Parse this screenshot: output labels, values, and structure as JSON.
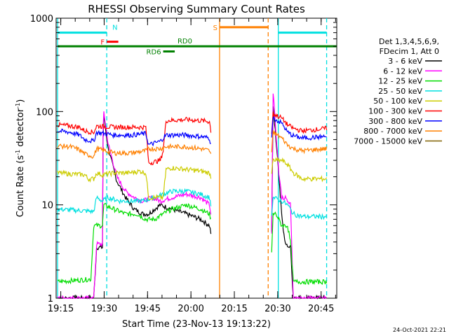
{
  "chart_data": {
    "type": "line",
    "title": "RHESSI Observing Summary Count Rates",
    "xlabel": "Start Time (23-Nov-13 19:13:22)",
    "ylabel_main": "Count Rate (s",
    "ylabel_sup1": "-1",
    "ylabel_mid": " detector",
    "ylabel_sup2": "-1",
    "ylabel_end": ")",
    "y_log": true,
    "ylim": [
      1,
      1000
    ],
    "xlim_minutes": [
      0,
      97
    ],
    "x_tick_labels": [
      "19:15",
      "19:30",
      "19:45",
      "20:00",
      "20:15",
      "20:30",
      "20:45"
    ],
    "x_tick_minutes": [
      1.6,
      16.6,
      31.6,
      46.6,
      61.6,
      76.6,
      91.6
    ],
    "y_tick_labels": [
      "1",
      "10",
      "100",
      "1000"
    ],
    "y_tick_values": [
      1,
      10,
      100,
      1000
    ],
    "legend_header": [
      "Det 1,3,4,5,6,9,",
      "FDecim 1, Att 0"
    ],
    "legend_placement": "right",
    "series": [
      {
        "name": "3 - 6 keV",
        "color": "#000000"
      },
      {
        "name": "6 - 12 keV",
        "color": "#ff00ff"
      },
      {
        "name": "12 - 25 keV",
        "color": "#00dd00"
      },
      {
        "name": "25 - 50 keV",
        "color": "#00e0e0"
      },
      {
        "name": "50 - 100 keV",
        "color": "#cccc00"
      },
      {
        "name": "100 - 300 keV",
        "color": "#ff0000"
      },
      {
        "name": "300 - 800 keV",
        "color": "#0000ff"
      },
      {
        "name": "800 - 7000 keV",
        "color": "#ff8000"
      },
      {
        "name": "7000 - 15000 keV",
        "color": "#806000"
      }
    ],
    "segments": [
      {
        "start": 0.5,
        "end": 53.5,
        "levels": {
          "3 - 6 keV": [
            [
              0.5,
              1
            ],
            [
              13,
              1
            ],
            [
              14,
              3.5
            ],
            [
              16,
              3.5
            ],
            [
              16.3,
              100
            ],
            [
              18,
              40
            ],
            [
              21,
              18
            ],
            [
              24,
              12
            ],
            [
              27,
              9
            ],
            [
              30,
              8
            ],
            [
              32,
              8
            ],
            [
              34,
              9
            ],
            [
              36,
              10
            ],
            [
              40,
              9
            ],
            [
              45,
              8
            ],
            [
              50,
              7
            ],
            [
              53,
              6
            ],
            [
              53.5,
              5
            ]
          ],
          "6 - 12 keV": [
            [
              0.5,
              1
            ],
            [
              13,
              1
            ],
            [
              14,
              3.8
            ],
            [
              16,
              3.8
            ],
            [
              16.3,
              110
            ],
            [
              18,
              45
            ],
            [
              21,
              20
            ],
            [
              24,
              14
            ],
            [
              27,
              12
            ],
            [
              30,
              11
            ],
            [
              33,
              12
            ],
            [
              36,
              11
            ],
            [
              40,
              12
            ],
            [
              45,
              13
            ],
            [
              50,
              12
            ],
            [
              53,
              10
            ],
            [
              53.5,
              8
            ]
          ],
          "12 - 25 keV": [
            [
              0.5,
              1.5
            ],
            [
              12,
              1.6
            ],
            [
              13,
              6
            ],
            [
              16,
              6
            ],
            [
              16.5,
              10
            ],
            [
              20,
              9
            ],
            [
              24,
              8
            ],
            [
              28,
              8
            ],
            [
              31,
              7
            ],
            [
              34,
              7
            ],
            [
              37,
              8
            ],
            [
              40,
              9
            ],
            [
              45,
              10
            ],
            [
              50,
              9
            ],
            [
              53,
              8
            ],
            [
              53.5,
              7
            ]
          ],
          "25 - 50 keV": [
            [
              0.5,
              9
            ],
            [
              13,
              8.5
            ],
            [
              14,
              12
            ],
            [
              16,
              11
            ],
            [
              18,
              12
            ],
            [
              22,
              11
            ],
            [
              26,
              11
            ],
            [
              30,
              11
            ],
            [
              34,
              12
            ],
            [
              37,
              13
            ],
            [
              40,
              14
            ],
            [
              45,
              14
            ],
            [
              50,
              13
            ],
            [
              53,
              12
            ],
            [
              53.5,
              10
            ]
          ],
          "50 - 100 keV": [
            [
              0.5,
              22
            ],
            [
              10,
              21
            ],
            [
              11,
              19
            ],
            [
              13,
              19
            ],
            [
              14,
              22
            ],
            [
              16,
              21
            ],
            [
              20,
              22
            ],
            [
              25,
              22
            ],
            [
              29,
              23
            ],
            [
              31,
              22
            ],
            [
              32,
              12
            ],
            [
              37,
              12
            ],
            [
              38,
              24
            ],
            [
              40,
              25
            ],
            [
              45,
              24
            ],
            [
              50,
              23
            ],
            [
              53,
              22
            ],
            [
              53.5,
              20
            ]
          ],
          "100 - 300 keV": [
            [
              0.5,
              72
            ],
            [
              5,
              70
            ],
            [
              8,
              68
            ],
            [
              10,
              62
            ],
            [
              13,
              60
            ],
            [
              14,
              70
            ],
            [
              20,
              68
            ],
            [
              26,
              68
            ],
            [
              31,
              68
            ],
            [
              32,
              28
            ],
            [
              36,
              30
            ],
            [
              37,
              38
            ],
            [
              38,
              80
            ],
            [
              45,
              82
            ],
            [
              50,
              80
            ],
            [
              53,
              78
            ],
            [
              53.5,
              62
            ]
          ],
          "300 - 800 keV": [
            [
              0.5,
              62
            ],
            [
              5,
              60
            ],
            [
              8,
              56
            ],
            [
              10,
              50
            ],
            [
              13,
              48
            ],
            [
              14,
              60
            ],
            [
              20,
              56
            ],
            [
              26,
              56
            ],
            [
              31,
              58
            ],
            [
              32,
              44
            ],
            [
              36,
              48
            ],
            [
              37,
              52
            ],
            [
              38,
              56
            ],
            [
              45,
              56
            ],
            [
              50,
              54
            ],
            [
              53,
              52
            ],
            [
              53.5,
              44
            ]
          ],
          "800 - 7000 keV": [
            [
              0.5,
              43
            ],
            [
              5,
              42
            ],
            [
              8,
              39
            ],
            [
              10,
              35
            ],
            [
              13,
              33
            ],
            [
              14,
              40
            ],
            [
              20,
              36
            ],
            [
              26,
              36
            ],
            [
              31,
              38
            ],
            [
              32,
              40
            ],
            [
              36,
              40
            ],
            [
              38,
              42
            ],
            [
              45,
              42
            ],
            [
              50,
              40
            ],
            [
              53,
              38
            ],
            [
              53.5,
              34
            ]
          ]
        }
      },
      {
        "start": 74.5,
        "end": 93.5,
        "levels": {
          "3 - 6 keV": [
            [
              74.5,
              5
            ],
            [
              75,
              115
            ],
            [
              76,
              50
            ],
            [
              77,
              20
            ],
            [
              78,
              8
            ],
            [
              79,
              4
            ],
            [
              81,
              3.5
            ],
            [
              82,
              1
            ],
            [
              93.5,
              1
            ]
          ],
          "6 - 12 keV": [
            [
              74.5,
              5
            ],
            [
              75,
              165
            ],
            [
              76,
              60
            ],
            [
              77,
              22
            ],
            [
              78,
              12
            ],
            [
              79,
              12
            ],
            [
              81,
              10
            ],
            [
              82,
              1
            ],
            [
              93.5,
              1
            ]
          ],
          "12 - 25 keV": [
            [
              74.5,
              3
            ],
            [
              75,
              8
            ],
            [
              76,
              8
            ],
            [
              78,
              6
            ],
            [
              80,
              6
            ],
            [
              81,
              4
            ],
            [
              82,
              1.5
            ],
            [
              93.5,
              1.5
            ]
          ],
          "25 - 50 keV": [
            [
              74.5,
              8
            ],
            [
              75,
              12
            ],
            [
              78,
              11
            ],
            [
              80,
              10
            ],
            [
              82,
              8
            ],
            [
              85,
              7.5
            ],
            [
              93.5,
              7.5
            ]
          ],
          "50 - 100 keV": [
            [
              74.5,
              22
            ],
            [
              75,
              30
            ],
            [
              78,
              30
            ],
            [
              80,
              27
            ],
            [
              82,
              22
            ],
            [
              85,
              19
            ],
            [
              93.5,
              19
            ]
          ],
          "100 - 300 keV": [
            [
              74.5,
              60
            ],
            [
              75,
              95
            ],
            [
              78,
              85
            ],
            [
              80,
              72
            ],
            [
              82,
              66
            ],
            [
              85,
              62
            ],
            [
              93.5,
              66
            ]
          ],
          "300 - 800 keV": [
            [
              74.5,
              55
            ],
            [
              75,
              85
            ],
            [
              78,
              75
            ],
            [
              80,
              60
            ],
            [
              82,
              55
            ],
            [
              85,
              52
            ],
            [
              93.5,
              54
            ]
          ],
          "800 - 7000 keV": [
            [
              74.5,
              36
            ],
            [
              75,
              60
            ],
            [
              78,
              52
            ],
            [
              80,
              44
            ],
            [
              82,
              40
            ],
            [
              85,
              38
            ],
            [
              93.5,
              40
            ]
          ]
        }
      }
    ],
    "bars": [
      {
        "label": "",
        "color": "#00e0e0",
        "x0": 0.5,
        "x1": 17.5,
        "y": 700
      },
      {
        "label": "N",
        "color": "#00e0e0",
        "x0": 17.5,
        "x1": 17.5,
        "y": 700
      },
      {
        "label": "F",
        "color": "#ff0000",
        "x0": 17.5,
        "x1": 21.5,
        "y": 560
      },
      {
        "label": "S",
        "color": "#ff8000",
        "x0": 56.5,
        "x1": 73.3,
        "y": 800
      },
      {
        "label": "",
        "color": "#00e0e0",
        "x0": 76.8,
        "x1": 93.5,
        "y": 700
      },
      {
        "label": "",
        "color": "#008000",
        "x0": 0.5,
        "x1": 97,
        "y": 500
      },
      {
        "label": "RD6",
        "color": "#008000",
        "x0": 37,
        "x1": 41,
        "y": 440
      },
      {
        "label": "RD0",
        "color": "#008000",
        "x0": 40,
        "x1": 40,
        "y": 500
      }
    ],
    "vlines": [
      {
        "x": 0.5,
        "color": "#00e0e0",
        "style": "solid"
      },
      {
        "x": 17.5,
        "color": "#00e0e0",
        "style": "dash"
      },
      {
        "x": 56.5,
        "color": "#ff8000",
        "style": "solid"
      },
      {
        "x": 73.3,
        "color": "#ff8000",
        "style": "dash"
      },
      {
        "x": 76.8,
        "color": "#00e0e0",
        "style": "solid"
      },
      {
        "x": 93.5,
        "color": "#00e0e0",
        "style": "dash"
      }
    ]
  },
  "footer_stamp": "24-Oct-2021 22:21"
}
